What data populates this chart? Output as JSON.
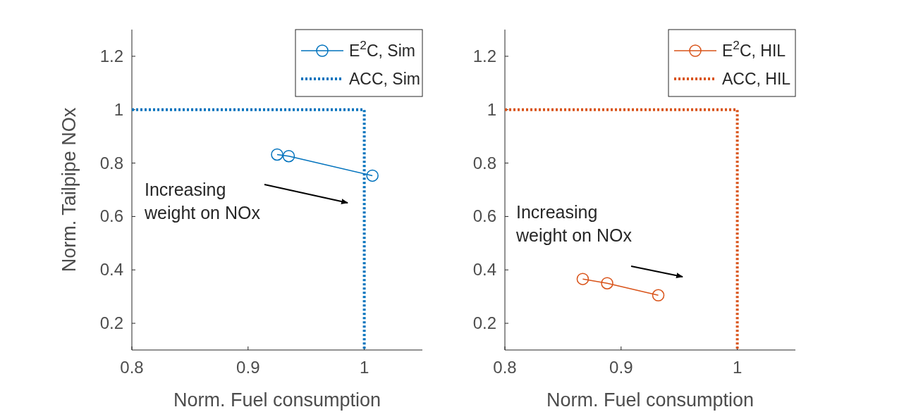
{
  "chart_data": [
    {
      "type": "line",
      "xlabel": "Norm. Fuel consumption",
      "ylabel": "Norm. Tailpipe NOx",
      "xlim": [
        0.8,
        1.05
      ],
      "ylim": [
        0.1,
        1.3
      ],
      "xticks": [
        0.8,
        0.9,
        1
      ],
      "yticks": [
        0.2,
        0.4,
        0.6,
        0.8,
        1,
        1.2
      ],
      "legend": "top right",
      "grid": false,
      "annotations": [
        "Increasing\nweight on NOx"
      ],
      "series": [
        {
          "name": "E$^{2}$C, Sim",
          "color": "#0072bd",
          "marker": "circle",
          "line_style": "solid",
          "x": [
            0.925,
            0.935,
            1.007
          ],
          "values": [
            0.832,
            0.826,
            0.753
          ]
        },
        {
          "name": "ACC, Sim",
          "color": "#0072bd",
          "marker": "none",
          "line_style": "dotted",
          "x": [
            0.8,
            1,
            1
          ],
          "values": [
            1,
            1,
            0.1
          ]
        }
      ]
    },
    {
      "type": "line",
      "xlabel": "Norm. Fuel consumption",
      "xlim": [
        0.8,
        1.05
      ],
      "ylim": [
        0.1,
        1.3
      ],
      "xticks": [
        0.8,
        0.9,
        1
      ],
      "yticks": [
        0.2,
        0.4,
        0.6,
        0.8,
        1,
        1.2
      ],
      "legend": "top right",
      "grid": false,
      "annotations": [
        "Increasing\nweight on NOx"
      ],
      "series": [
        {
          "name": "E$^{2}$C, HIL",
          "color": "#d95319",
          "marker": "circle",
          "line_style": "solid",
          "x": [
            0.867,
            0.888,
            0.932
          ],
          "values": [
            0.366,
            0.35,
            0.305
          ]
        },
        {
          "name": "ACC, HIL",
          "color": "#d95319",
          "marker": "none",
          "line_style": "dotted",
          "x": [
            0.8,
            1,
            1
          ],
          "values": [
            1,
            1,
            0.1
          ]
        }
      ]
    }
  ]
}
